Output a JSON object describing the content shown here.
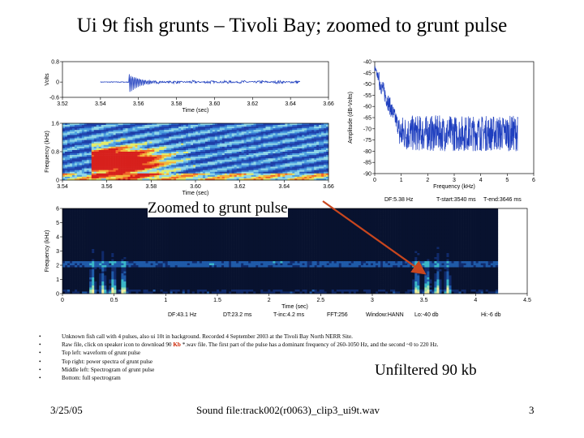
{
  "slide": {
    "title": "Ui 9t fish grunts – Tivoli Bay; zoomed to grunt pulse",
    "callout": "Zoomed to grunt pulse",
    "unfiltered": "Unfiltered 90 kb",
    "footer": {
      "date": "3/25/05",
      "sound_file": "Sound file:track002(r0063)_clip3_ui9t.wav",
      "page": "3"
    },
    "bullets": [
      {
        "text": "Unknown fish call with 4 pulses, also ui 10t in background. Recorded 4 September 2003 at the Tivoli Bay North NERR Site."
      },
      {
        "pre": "Raw file, click on speaker icon to download 90 ",
        "highlight": "Kb",
        "post": " *.wav file. The first part of the pulse has a dominant frequency of 260-1050 Hz, and the second ~0 to 220 Hz."
      },
      {
        "text": "Top left: waveform of grunt pulse"
      },
      {
        "text": "Top right: power spectra of grunt pulse"
      },
      {
        "text": "Middle left: Spectrogram of grunt pulse"
      },
      {
        "text": "Bottom: full spectrogram"
      }
    ]
  },
  "chart_data": [
    {
      "type": "line",
      "name": "waveform",
      "xlabel": "Time (sec)",
      "ylabel": "Volts",
      "xlim": [
        3.52,
        3.66
      ],
      "ylim": [
        -0.6,
        0.8
      ],
      "xticks": [
        "3.52",
        "3.54",
        "3.56",
        "3.58",
        "3.60",
        "3.62",
        "3.64",
        "3.66"
      ],
      "yticks": [
        "0.8",
        "0",
        "-0.6"
      ],
      "color": "#1f3fbf"
    },
    {
      "type": "line",
      "name": "power-spectrum",
      "xlabel": "Frequency (kHz)",
      "ylabel": "Amplitude (dB-Volts)",
      "xlim": [
        0,
        6
      ],
      "ylim": [
        -90,
        -40
      ],
      "xticks": [
        "0",
        "1",
        "2",
        "3",
        "4",
        "5",
        "6"
      ],
      "yticks": [
        "-40",
        "-45",
        "-50",
        "-55",
        "-60",
        "-65",
        "-70",
        "-75",
        "-80",
        "-85",
        "-90"
      ],
      "info": {
        "df": "DF:5.38 Hz",
        "tstart": "T-start:3540 ms",
        "tend": "T-end:3646 ms"
      },
      "color": "#1f3fbf"
    },
    {
      "type": "heatmap",
      "name": "grunt-spectrogram",
      "xlabel": "Time (sec)",
      "ylabel": "Frequency (kHz)",
      "xlim": [
        3.54,
        3.66
      ],
      "ylim": [
        0,
        1.6
      ],
      "xticks": [
        "3.54",
        "3.56",
        "3.58",
        "3.60",
        "3.62",
        "3.64",
        "3.66"
      ],
      "yticks": [
        "1.6",
        "0.8",
        "0"
      ]
    },
    {
      "type": "heatmap",
      "name": "full-spectrogram",
      "xlabel": "Time (sec)",
      "ylabel": "Frequency (kHz)",
      "xlim": [
        0,
        4.5
      ],
      "ylim": [
        0,
        6
      ],
      "xticks": [
        "0",
        "0.5",
        "1",
        "1.5",
        "2",
        "2.5",
        "3",
        "3.5",
        "4",
        "4.5"
      ],
      "yticks": [
        "6",
        "5",
        "4",
        "3",
        "2",
        "1",
        "0"
      ],
      "info": [
        "DF:43.1 Hz",
        "DT:23.2 ms",
        "T-inc:4.2 ms",
        "FFT:256",
        "Window:HANN",
        "Lo:-40 db",
        "Hi:-6 db"
      ]
    }
  ]
}
